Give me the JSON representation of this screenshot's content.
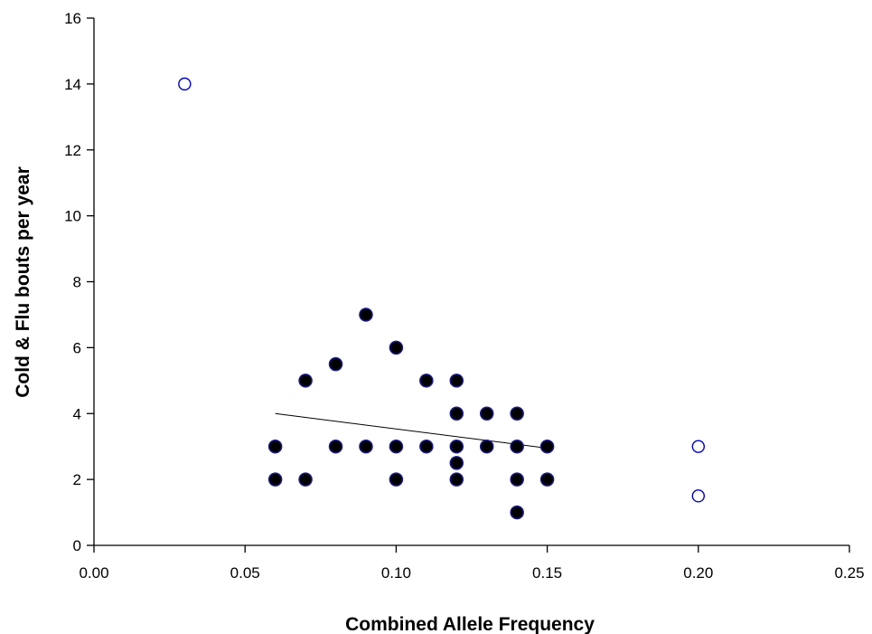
{
  "chart_data": {
    "type": "scatter",
    "title": "",
    "xlabel": "Combined Allele Frequency",
    "ylabel": "Cold & Flu bouts per year",
    "xlim": [
      0,
      0.25
    ],
    "ylim": [
      0,
      16
    ],
    "xticks": [
      0.0,
      0.05,
      0.1,
      0.15,
      0.2,
      0.25
    ],
    "xtick_labels": [
      "0.00",
      "0.05",
      "0.10",
      "0.15",
      "0.20",
      "0.25"
    ],
    "yticks": [
      0,
      2,
      4,
      6,
      8,
      10,
      12,
      14,
      16
    ],
    "ytick_labels": [
      "0",
      "2",
      "4",
      "6",
      "8",
      "10",
      "12",
      "14",
      "16"
    ],
    "grid": false,
    "series": [
      {
        "marker": "filled-circle",
        "color": "#000000",
        "edge_color": "#1a1a8c",
        "x": [
          0.06,
          0.06,
          0.07,
          0.07,
          0.08,
          0.08,
          0.09,
          0.09,
          0.1,
          0.1,
          0.1,
          0.11,
          0.11,
          0.12,
          0.12,
          0.12,
          0.12,
          0.12,
          0.13,
          0.13,
          0.14,
          0.14,
          0.14,
          0.14,
          0.15,
          0.15
        ],
        "y": [
          3,
          2,
          5,
          2,
          5.5,
          3,
          7,
          3,
          6,
          3,
          2,
          5,
          3,
          5,
          4,
          3,
          2.5,
          2,
          4,
          3,
          4,
          3,
          2,
          1,
          3,
          2
        ]
      },
      {
        "marker": "open-circle",
        "color": "#0000cc",
        "x": [
          0.03,
          0.2,
          0.2
        ],
        "y": [
          14,
          3,
          1.5
        ]
      }
    ],
    "fit_line": {
      "x": [
        0.06,
        0.15
      ],
      "y": [
        4.0,
        2.95
      ],
      "color": "#000000"
    }
  }
}
